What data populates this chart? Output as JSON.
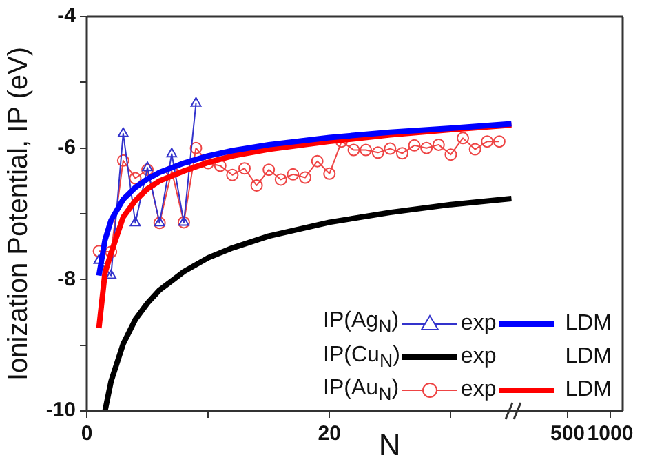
{
  "chart_data": [
    {
      "type": "line",
      "xlabel": "N",
      "ylabel": "Ionization Potential, IP (eV)",
      "xlim": [
        0,
        35.2
      ],
      "xticks": [
        0,
        {
          "value": 10,
          "label": null
        },
        20,
        {
          "value": 30,
          "label": null
        }
      ],
      "ylim": [
        -10,
        -4
      ],
      "yticks": [
        -10,
        {
          "value": -9,
          "label": null
        },
        -8,
        {
          "value": -7,
          "label": null
        },
        -6,
        {
          "value": -5,
          "label": null
        },
        -4
      ],
      "grid": false,
      "legend": "bottom right",
      "annotations": [
        "IP(Ag$_{N}$)",
        "IP(Cu$_{N}$)",
        "IP(Au$_{N}$)",
        "LDM"
      ],
      "series": [
        {
          "name": "exp",
          "color": "#3333cc",
          "marker": "triangle",
          "x": [
            1,
            2,
            3,
            4,
            5,
            6,
            7,
            8,
            9
          ],
          "values": [
            -7.71,
            -7.94,
            -5.78,
            -7.14,
            -6.3,
            -7.14,
            -6.09,
            -7.13,
            -5.32
          ]
        },
        {
          "name": "LDM",
          "color": "#0000ff",
          "marker": "none",
          "x": [
            1,
            1.5,
            2,
            3,
            4,
            5,
            6,
            8,
            10,
            12,
            15,
            20,
            25,
            30,
            35
          ],
          "values": [
            -7.94,
            -7.4,
            -7.1,
            -6.78,
            -6.6,
            -6.47,
            -6.37,
            -6.23,
            -6.12,
            -6.04,
            -5.95,
            -5.84,
            -5.76,
            -5.7,
            -5.63
          ]
        },
        {
          "name": "exp",
          "color": "#000000",
          "marker": "none",
          "x": [
            1.5,
            2,
            3,
            4,
            5,
            6,
            8,
            10,
            12,
            15,
            20,
            25,
            30,
            35
          ],
          "values": [
            -10,
            -9.55,
            -8.98,
            -8.61,
            -8.36,
            -8.16,
            -7.88,
            -7.67,
            -7.52,
            -7.34,
            -7.13,
            -6.98,
            -6.86,
            -6.77
          ]
        },
        {
          "name": "exp",
          "color": "#ee4444",
          "marker": "circle",
          "x": [
            1,
            2,
            3,
            4,
            5,
            6,
            7,
            8,
            9,
            10,
            11,
            12,
            13,
            14,
            15,
            16,
            17,
            18,
            19,
            20,
            21,
            22,
            23,
            24,
            25,
            26,
            27,
            28,
            29,
            30,
            31,
            32,
            33,
            34
          ],
          "values": [
            -7.57,
            -7.58,
            -6.19,
            -6.46,
            -6.33,
            -7.14,
            -6.35,
            -7.13,
            -6.0,
            -6.23,
            -6.27,
            -6.41,
            -6.31,
            -6.57,
            -6.33,
            -6.48,
            -6.4,
            -6.45,
            -6.2,
            -6.39,
            -5.9,
            -6.03,
            -6.03,
            -6.07,
            -6.01,
            -6.08,
            -5.96,
            -6.0,
            -5.95,
            -6.1,
            -5.85,
            -6.02,
            -5.9,
            -5.9
          ]
        },
        {
          "name": "LDM",
          "color": "#ff0000",
          "marker": "none",
          "x": [
            1,
            1.5,
            2,
            3,
            4,
            5,
            6,
            8,
            10,
            12,
            15,
            20,
            25,
            30,
            35
          ],
          "values": [
            -8.74,
            -7.9,
            -7.6,
            -7.05,
            -6.8,
            -6.62,
            -6.5,
            -6.35,
            -6.22,
            -6.12,
            -6.02,
            -5.9,
            -5.8,
            -5.72,
            -5.65
          ]
        }
      ]
    },
    {
      "type": "line",
      "log": "x",
      "xlim": [
        209,
        1223
      ],
      "xticks": [
        500,
        1000
      ],
      "ylim": [
        -10,
        -4
      ],
      "tick_labels": "x",
      "grid": false
    }
  ]
}
